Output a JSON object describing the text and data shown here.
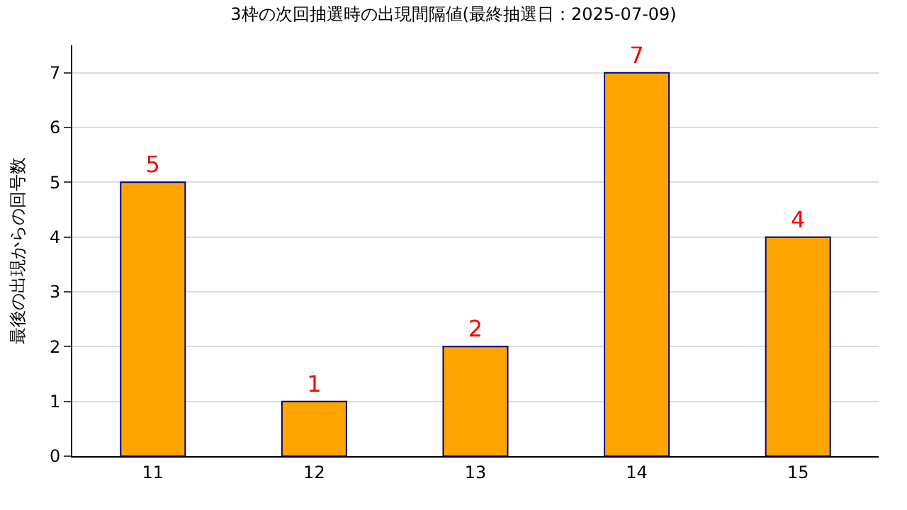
{
  "chart_data": {
    "type": "bar",
    "title": "3枠の次回抽選時の出現間隔値(最終抽選日：2025-07-09)",
    "ylabel": "最後の出現からの回号数",
    "categories": [
      "11",
      "12",
      "13",
      "14",
      "15"
    ],
    "values": [
      5,
      1,
      2,
      7,
      4
    ],
    "color": "#ffa500",
    "ylim": [
      0,
      7.5
    ],
    "yticks": [
      0,
      1,
      2,
      3,
      4,
      5,
      6,
      7
    ],
    "grid": "y",
    "data_labels": true,
    "legend": false
  }
}
